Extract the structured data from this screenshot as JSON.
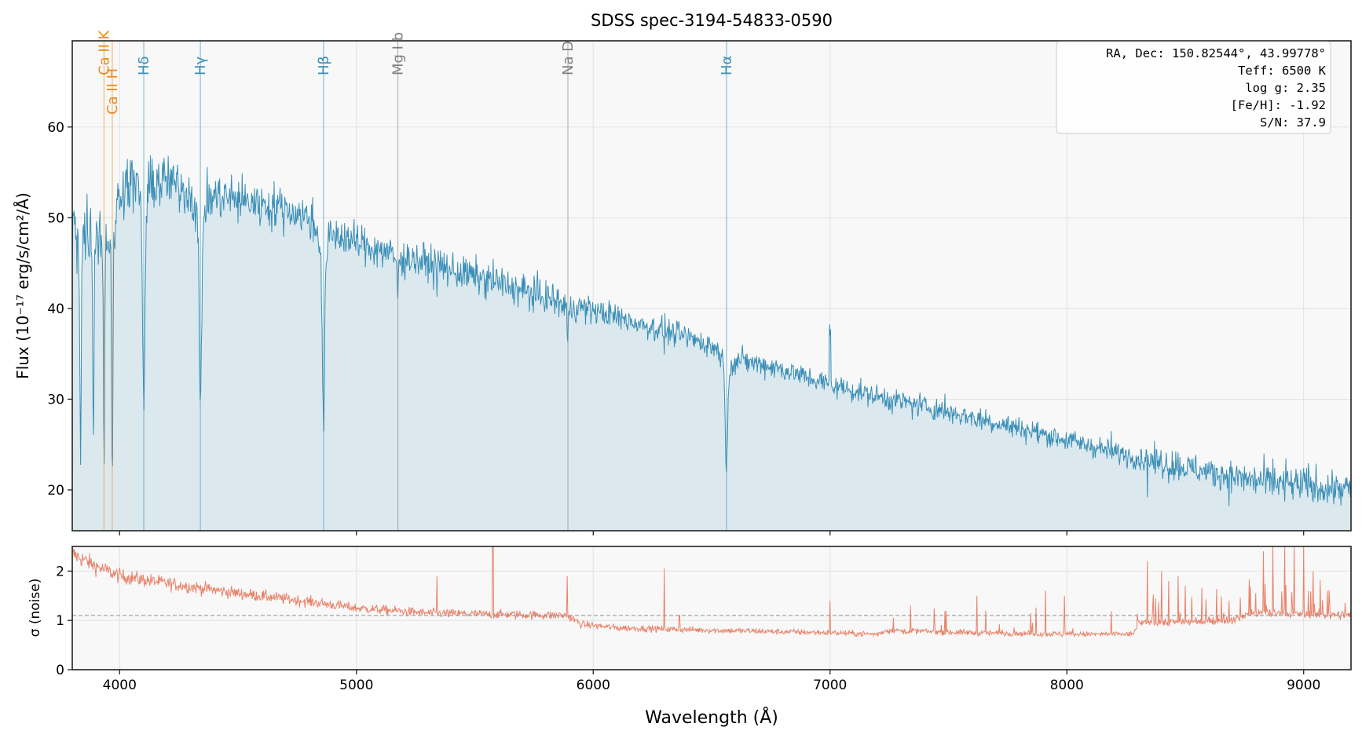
{
  "chart_data": [
    {
      "type": "line",
      "title": "SDSS spec-3194-54833-0590",
      "xlabel": "Wavelength (Å)",
      "ylabel": "Flux (10⁻¹⁷ erg/s/cm²/Å)",
      "xlim": [
        3800,
        9200
      ],
      "ylim": [
        15.5,
        69.5
      ],
      "grid": true,
      "xticks": [
        4000,
        5000,
        6000,
        7000,
        8000,
        9000
      ],
      "yticks": [
        20,
        30,
        40,
        50,
        60
      ],
      "colors": {
        "flux": "#3a8fb7",
        "fill": "#dbe8ee",
        "balmer": "#3a8fb7",
        "calcium": "#ee8a1c",
        "metal": "#808080"
      },
      "continuum": {
        "x": [
          3800,
          3900,
          4000,
          4100,
          4200,
          4300,
          4400,
          4500,
          4600,
          4700,
          4800,
          4900,
          5000,
          5200,
          5400,
          5600,
          5800,
          6000,
          6200,
          6400,
          6550,
          6600,
          6800,
          7000,
          7200,
          7400,
          7600,
          7800,
          8000,
          8200,
          8400,
          8600,
          8800,
          9000,
          9200
        ],
        "y": [
          50,
          52,
          54,
          54.5,
          54,
          53,
          52.5,
          52,
          51.5,
          51,
          50,
          48.5,
          47.2,
          45.8,
          44.2,
          42.8,
          41.2,
          39.8,
          38.3,
          36.8,
          35.5,
          34.5,
          33.3,
          31.6,
          30.3,
          29.2,
          28,
          26.8,
          25.5,
          24.2,
          23,
          22,
          21,
          20.5,
          20
        ]
      },
      "absorption_lines": [
        {
          "label": "Ca II K",
          "wavelength": 3934,
          "min_flux": 24,
          "group": "calcium"
        },
        {
          "label": "Ca II H",
          "wavelength": 3969,
          "min_flux": 18,
          "group": "calcium"
        },
        {
          "label": "Hδ",
          "wavelength": 4102,
          "min_flux": 29.5,
          "group": "balmer"
        },
        {
          "label": "Hγ",
          "wavelength": 4341,
          "min_flux": 28.5,
          "group": "balmer"
        },
        {
          "label": "Hβ",
          "wavelength": 4861,
          "min_flux": 27,
          "group": "balmer"
        },
        {
          "label": "Mg I b",
          "wavelength": 5175,
          "min_flux": 41,
          "group": "metal"
        },
        {
          "label": "Na D",
          "wavelength": 5893,
          "min_flux": 36.5,
          "group": "metal"
        },
        {
          "label": "Hα",
          "wavelength": 6563,
          "min_flux": 22,
          "group": "balmer"
        }
      ],
      "extra_absorption": [
        [
          3835,
          24
        ],
        [
          3889,
          27
        ]
      ],
      "info_box": {
        "lines": [
          "RA, Dec: 150.82544°, 43.99778°",
          "Teff: 6500 K",
          "log g: 2.35",
          "[Fe/H]: -1.92",
          "S/N: 37.9"
        ],
        "position": "top-right"
      }
    },
    {
      "type": "line",
      "ylabel": "σ (noise)",
      "xlabel": "Wavelength (Å)",
      "xlim": [
        3800,
        9200
      ],
      "ylim": [
        0,
        2.5
      ],
      "grid": true,
      "xticks": [
        4000,
        5000,
        6000,
        7000,
        8000,
        9000
      ],
      "yticks": [
        0,
        1,
        2
      ],
      "reference_line": 1.1,
      "colors": {
        "sigma": "#e8836a",
        "reference": "#999999"
      },
      "sigma_baseline": {
        "x": [
          3800,
          3900,
          4000,
          4200,
          4500,
          4800,
          5000,
          5300,
          5600,
          5890,
          5950,
          6100,
          6500,
          7000,
          7200,
          7240,
          7600,
          8000,
          8280,
          8300,
          8700,
          8780,
          9200
        ],
        "y": [
          2.35,
          2.1,
          1.9,
          1.75,
          1.55,
          1.38,
          1.25,
          1.15,
          1.12,
          1.1,
          0.92,
          0.85,
          0.8,
          0.75,
          0.72,
          0.8,
          0.75,
          0.72,
          0.72,
          0.95,
          1.0,
          1.15,
          1.1
        ]
      },
      "sky_lines": [
        [
          4102,
          1.45
        ],
        [
          4340,
          1.3
        ],
        [
          4861,
          1.0
        ],
        [
          5340,
          1.9
        ],
        [
          5577,
          2.6
        ],
        [
          5890,
          1.9
        ],
        [
          6300,
          2.05
        ],
        [
          6364,
          1.1
        ],
        [
          7000,
          1.4
        ],
        [
          7340,
          1.3
        ],
        [
          7620,
          1.5
        ],
        [
          7910,
          1.6
        ],
        [
          7990,
          1.5
        ],
        [
          8340,
          2.2
        ],
        [
          8400,
          2.0
        ],
        [
          8430,
          1.8
        ],
        [
          8470,
          1.9
        ],
        [
          8500,
          1.7
        ],
        [
          8830,
          2.4
        ],
        [
          8870,
          2.5
        ],
        [
          8920,
          2.5
        ],
        [
          8960,
          2.5
        ],
        [
          9000,
          2.5
        ],
        [
          9040,
          2.0
        ],
        [
          9100,
          1.6
        ]
      ]
    }
  ]
}
